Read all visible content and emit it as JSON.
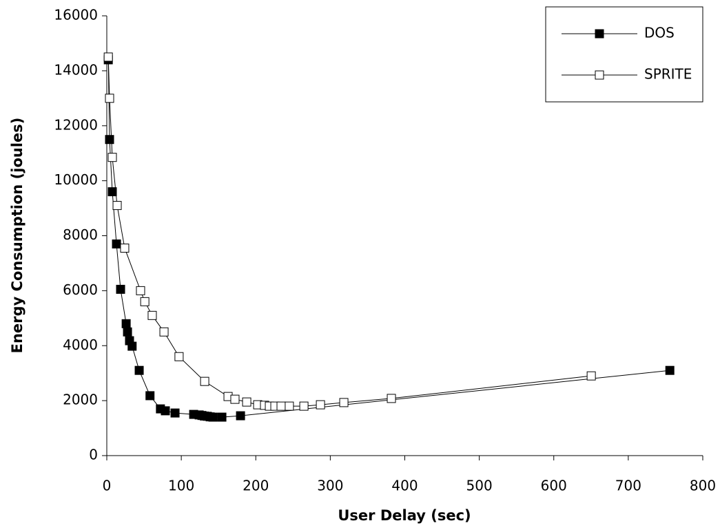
{
  "chart_data": {
    "type": "line",
    "xlabel": "User Delay (sec)",
    "ylabel": "Energy Consumption (joules)",
    "xlim": [
      0,
      800
    ],
    "xticks": [
      0,
      100,
      200,
      300,
      400,
      500,
      600,
      700,
      800
    ],
    "ylim": [
      0,
      16000
    ],
    "yticks": [
      0,
      2000,
      4000,
      6000,
      8000,
      10000,
      12000,
      14000,
      16000
    ],
    "legend": "upper right",
    "series": [
      {
        "name": "DOS",
        "color": "#000000",
        "marker_fill": "#000000",
        "x": [
          2,
          3.7,
          7.4,
          13,
          18.5,
          26,
          27.8,
          30.5,
          34,
          43.5,
          58,
          72,
          78.6,
          91.6,
          116.6,
          124,
          127.7,
          131,
          135,
          138.8,
          142.5,
          154.5,
          179.5,
          755.8
        ],
        "values": [
          14400,
          11500,
          9600,
          7700,
          6050,
          4800,
          4500,
          4180,
          3980,
          3100,
          2180,
          1700,
          1630,
          1550,
          1500,
          1480,
          1460,
          1440,
          1430,
          1410,
          1400,
          1400,
          1450,
          3100
        ]
      },
      {
        "name": "SPRITE",
        "color": "#000000",
        "marker_fill": "#ffffff",
        "x": [
          2,
          3.7,
          7.4,
          13.9,
          24,
          45.3,
          51,
          61,
          76.8,
          97,
          131.4,
          162.8,
          172,
          187.8,
          202.6,
          211.8,
          218.3,
          225.7,
          234,
          245,
          264.6,
          286.8,
          318.2,
          382,
          650.3
        ],
        "values": [
          14500,
          13000,
          10850,
          9100,
          7550,
          6000,
          5600,
          5100,
          4500,
          3600,
          2700,
          2150,
          2050,
          1950,
          1850,
          1830,
          1800,
          1800,
          1800,
          1800,
          1800,
          1850,
          1930,
          2080,
          2900
        ]
      }
    ]
  }
}
